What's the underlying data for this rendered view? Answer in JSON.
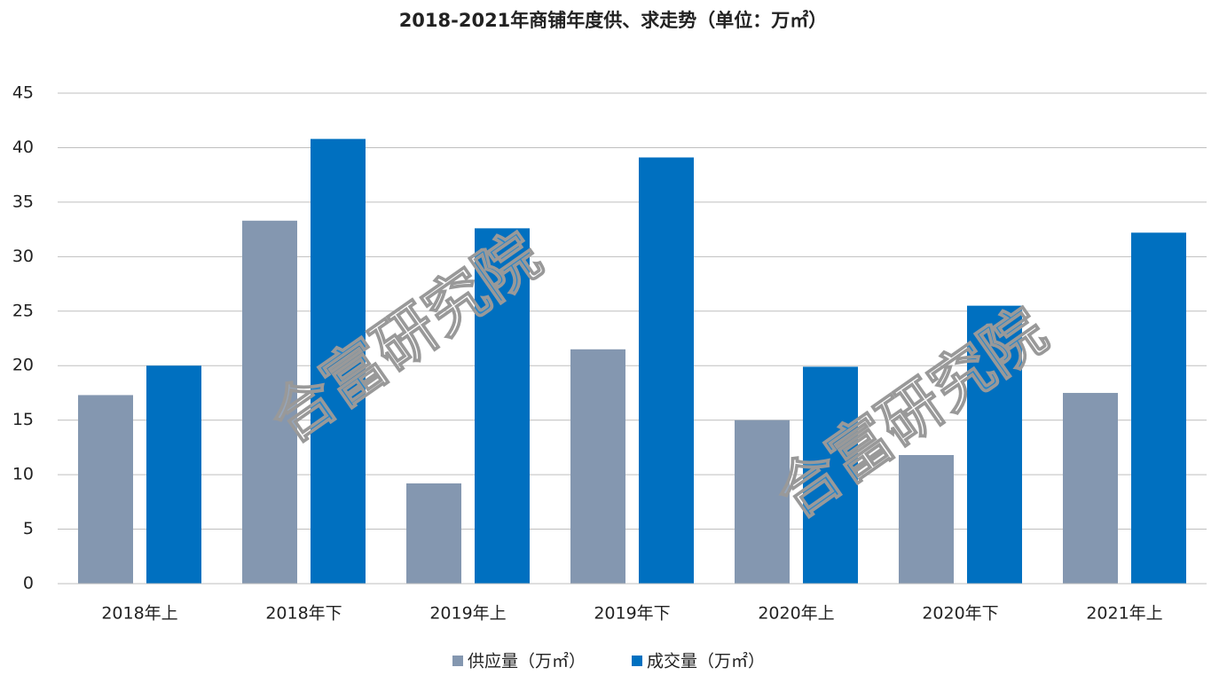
{
  "chart_data": {
    "type": "bar",
    "title": "2018-2021年商铺年度供、求走势（单位：万㎡）",
    "categories": [
      "2018年上",
      "2018年下",
      "2019年上",
      "2019年下",
      "2020年上",
      "2020年下",
      "2021年上"
    ],
    "series": [
      {
        "name": "供应量（万㎡）",
        "color": "#8497b0",
        "values": [
          17.3,
          33.3,
          9.2,
          21.5,
          15.0,
          11.8,
          17.5
        ]
      },
      {
        "name": "成交量（万㎡）",
        "color": "#0070c0",
        "values": [
          20.0,
          40.8,
          32.6,
          39.1,
          19.9,
          25.5,
          32.2
        ]
      }
    ],
    "ylim": [
      0,
      45
    ],
    "yticks": [
      0,
      5,
      10,
      15,
      20,
      25,
      30,
      35,
      40,
      45
    ],
    "grid": true,
    "legend": "bottom",
    "watermark": "合富研究院"
  }
}
